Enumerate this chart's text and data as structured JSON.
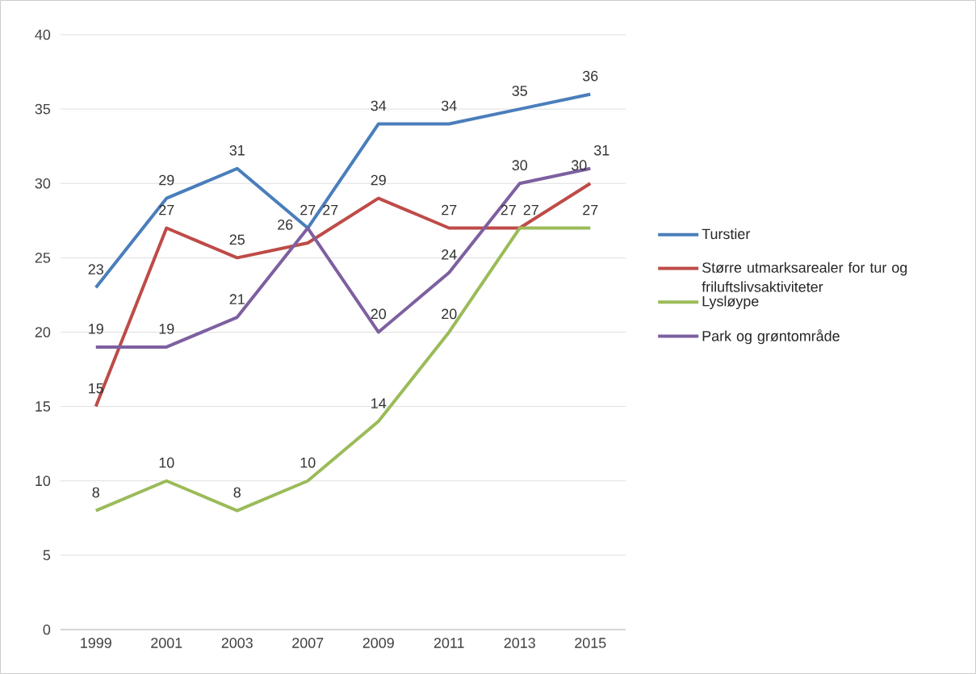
{
  "chart_data": {
    "type": "line",
    "categories": [
      "1999",
      "2001",
      "2003",
      "2007",
      "2009",
      "2011",
      "2013",
      "2015"
    ],
    "series": [
      {
        "name": "Turstier",
        "color": "#4a7ebb",
        "values": [
          23,
          29,
          31,
          27,
          34,
          34,
          35,
          36
        ]
      },
      {
        "name": "Større utmarksarealer for tur og friluftslivsaktiviteter",
        "color": "#be4b48",
        "values": [
          15,
          27,
          25,
          26,
          29,
          27,
          27,
          30
        ]
      },
      {
        "name": "Lysløype",
        "color": "#9bbb59",
        "values": [
          8,
          10,
          8,
          10,
          14,
          20,
          27,
          27
        ]
      },
      {
        "name": "Park og grøntområde",
        "color": "#7d60a0",
        "values": [
          19,
          19,
          21,
          27,
          20,
          24,
          30,
          31
        ]
      }
    ],
    "ylim": [
      0,
      40
    ],
    "yticks": [
      0,
      5,
      10,
      15,
      20,
      25,
      30,
      35,
      40
    ],
    "grid": "y",
    "legend": "right",
    "data_labels": true,
    "marker": "none",
    "line_style": "solid"
  }
}
